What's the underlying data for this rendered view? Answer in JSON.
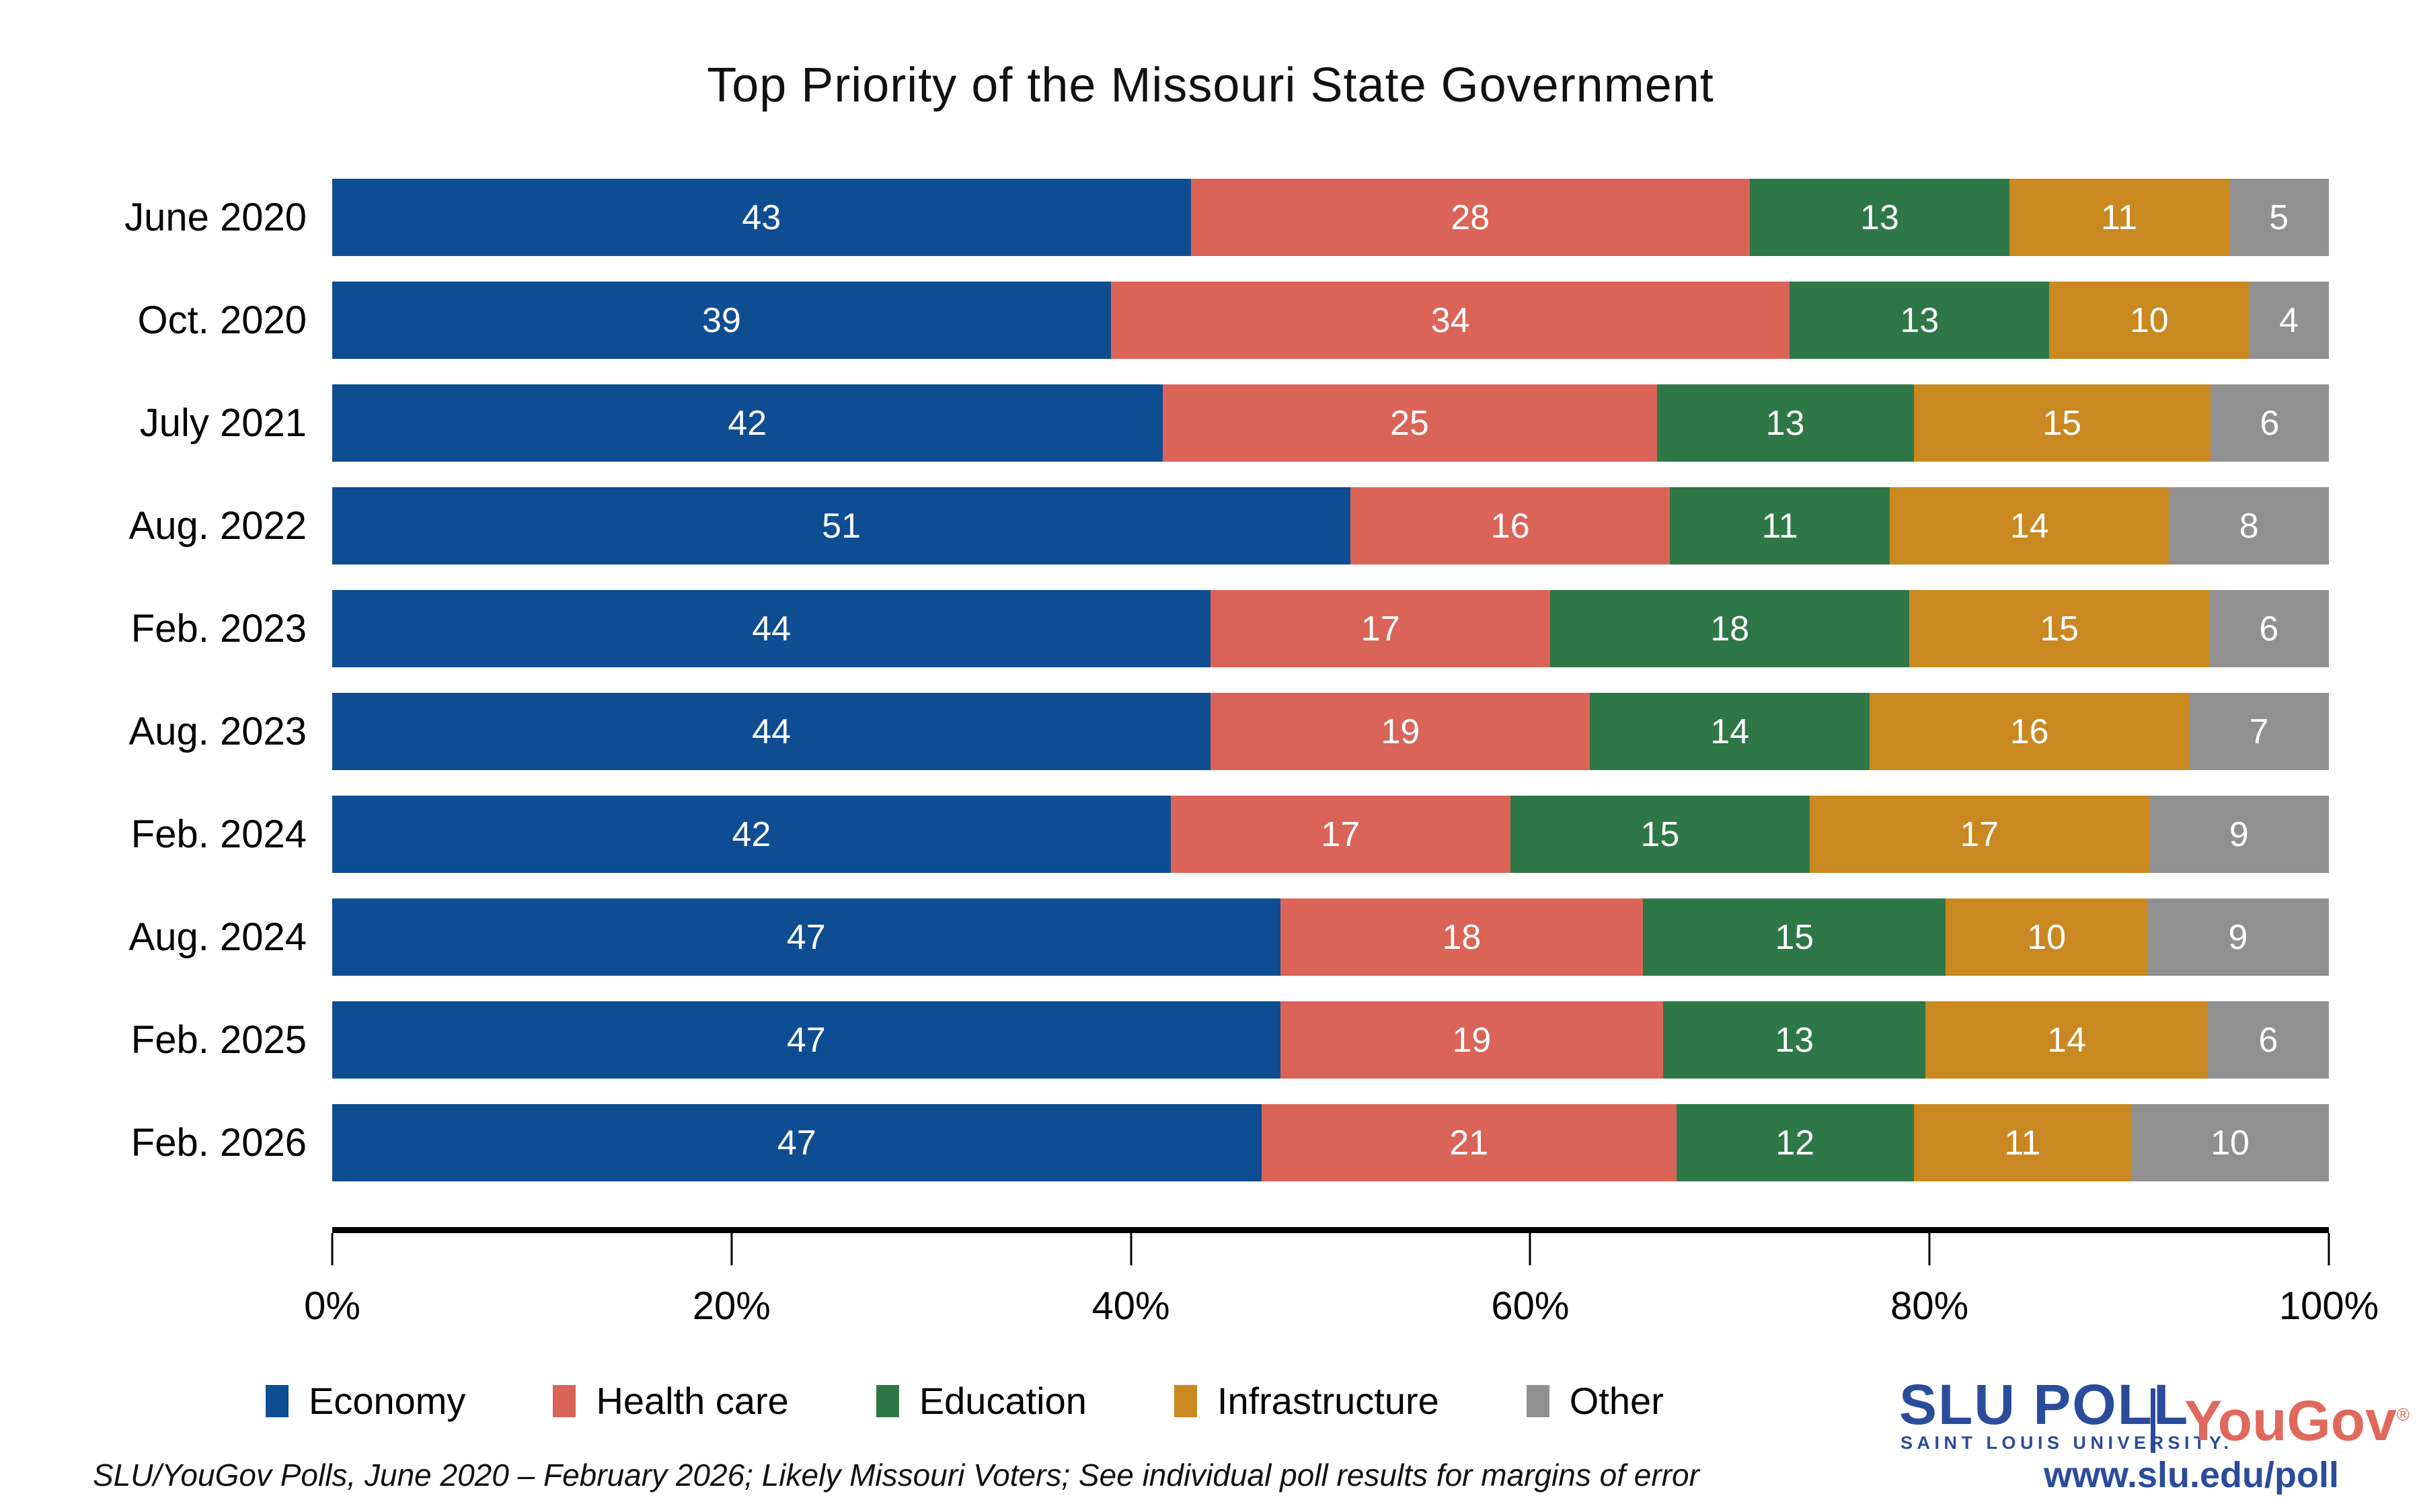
{
  "title": "Top Priority of the Missouri State Government",
  "chart_data": {
    "type": "bar",
    "subtype": "horizontal-stacked",
    "title": "Top Priority of the Missouri State Government",
    "categories": [
      "June 2020",
      "Oct. 2020",
      "July 2021",
      "Aug. 2022",
      "Feb. 2023",
      "Aug. 2023",
      "Feb. 2024",
      "Aug. 2024",
      "Feb. 2025",
      "Feb. 2026"
    ],
    "series": [
      {
        "name": "Economy",
        "color": "#0E4D91",
        "values": [
          43,
          39,
          42,
          51,
          44,
          44,
          42,
          47,
          47,
          47
        ]
      },
      {
        "name": "Health care",
        "color": "#DA6457",
        "values": [
          28,
          34,
          25,
          16,
          17,
          19,
          17,
          18,
          19,
          21
        ]
      },
      {
        "name": "Education",
        "color": "#2E7747",
        "values": [
          13,
          13,
          13,
          11,
          18,
          14,
          15,
          15,
          13,
          12
        ]
      },
      {
        "name": "Infrastructure",
        "color": "#C98820",
        "values": [
          11,
          10,
          15,
          14,
          15,
          16,
          17,
          10,
          14,
          11
        ]
      },
      {
        "name": "Other",
        "color": "#909090",
        "values": [
          5,
          4,
          6,
          8,
          6,
          7,
          9,
          9,
          6,
          10
        ]
      }
    ],
    "xlabel": "",
    "ylabel": "",
    "xlim": [
      0,
      100
    ],
    "x_ticks": [
      "0%",
      "20%",
      "40%",
      "60%",
      "80%",
      "100%"
    ],
    "grid": false,
    "legend_position": "bottom-left",
    "value_label_color": "#ffffff"
  },
  "footnote": "SLU/YouGov Polls, June 2020 – February 2026; Likely Missouri Voters; See individual poll results for margins of error",
  "branding": {
    "slu_poll": "SLU POLL",
    "slu_subtitle": "SAINT LOUIS UNIVERSITY.",
    "slu_trademark": "™",
    "yougov": "YouGov",
    "yougov_registered": "®",
    "url": "www.slu.edu/poll",
    "slu_blue": "#2B4C9B",
    "yougov_red": "#E0685C"
  }
}
